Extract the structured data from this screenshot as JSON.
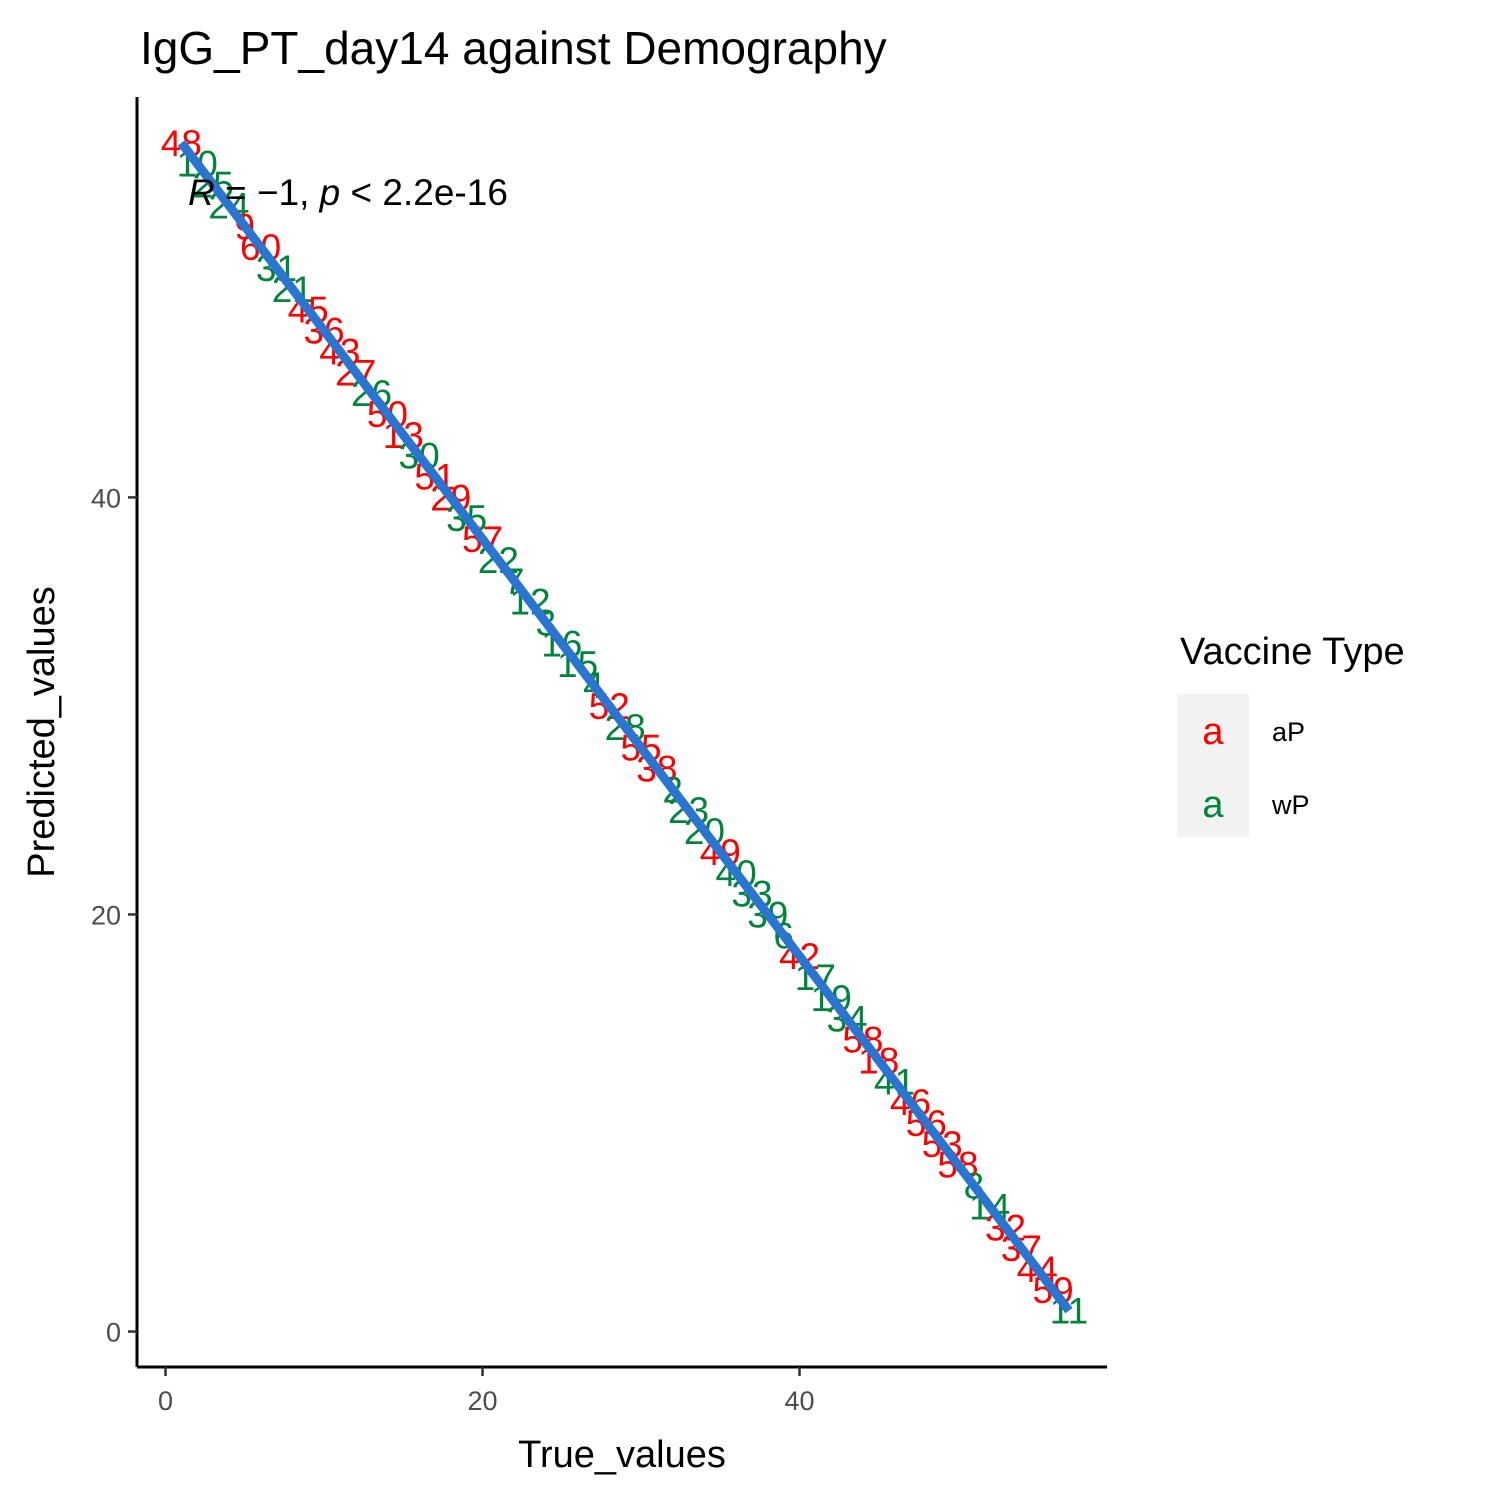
{
  "chart_data": {
    "type": "scatter",
    "title": "IgG_PT_day14 against Demography",
    "xlabel": "True_values",
    "ylabel": "Predicted_values",
    "xlim": [
      -1.8,
      59.4
    ],
    "ylim": [
      -1.7,
      59.2
    ],
    "xticks": [
      0,
      20,
      40
    ],
    "yticks": [
      0,
      20,
      40
    ],
    "grid": false,
    "annotation": "R = −1, p < 2.2e-16",
    "annotation_parts": {
      "r_symbol": "R",
      "r_rest": " = −1, ",
      "p_symbol": "p",
      "p_rest": " < 2.2e-16"
    },
    "legend": {
      "title": "Vaccine Type",
      "position": "right",
      "key_glyph": "a",
      "entries": [
        {
          "name": "aP",
          "color": "#ff0000"
        },
        {
          "name": "wP",
          "color": "#00843c"
        }
      ]
    },
    "regression_line": {
      "color": "#2a74d2",
      "from": [
        1,
        57
      ],
      "to": [
        57,
        1
      ]
    },
    "points": [
      {
        "label": "48",
        "x": 1,
        "y": 57,
        "group": "aP"
      },
      {
        "label": "10",
        "x": 2,
        "y": 56,
        "group": "wP"
      },
      {
        "label": "25",
        "x": 3,
        "y": 55,
        "group": "wP"
      },
      {
        "label": "24",
        "x": 4,
        "y": 54,
        "group": "wP"
      },
      {
        "label": "9",
        "x": 5,
        "y": 53,
        "group": "aP"
      },
      {
        "label": "60",
        "x": 6,
        "y": 52,
        "group": "aP"
      },
      {
        "label": "31",
        "x": 7,
        "y": 51,
        "group": "wP"
      },
      {
        "label": "21",
        "x": 8,
        "y": 50,
        "group": "wP"
      },
      {
        "label": "45",
        "x": 9,
        "y": 49,
        "group": "aP"
      },
      {
        "label": "36",
        "x": 10,
        "y": 48,
        "group": "aP"
      },
      {
        "label": "43",
        "x": 11,
        "y": 47,
        "group": "aP"
      },
      {
        "label": "27",
        "x": 12,
        "y": 46,
        "group": "aP"
      },
      {
        "label": "26",
        "x": 13,
        "y": 45,
        "group": "wP"
      },
      {
        "label": "50",
        "x": 14,
        "y": 44,
        "group": "aP"
      },
      {
        "label": "13",
        "x": 15,
        "y": 43,
        "group": "aP"
      },
      {
        "label": "30",
        "x": 16,
        "y": 42,
        "group": "wP"
      },
      {
        "label": "51",
        "x": 17,
        "y": 41,
        "group": "aP"
      },
      {
        "label": "29",
        "x": 18,
        "y": 40,
        "group": "aP"
      },
      {
        "label": "35",
        "x": 19,
        "y": 39,
        "group": "wP"
      },
      {
        "label": "57",
        "x": 20,
        "y": 38,
        "group": "aP"
      },
      {
        "label": "22",
        "x": 21,
        "y": 37,
        "group": "wP"
      },
      {
        "label": "7",
        "x": 22,
        "y": 36,
        "group": "wP"
      },
      {
        "label": "12",
        "x": 23,
        "y": 35,
        "group": "wP"
      },
      {
        "label": "3",
        "x": 24,
        "y": 34,
        "group": "wP"
      },
      {
        "label": "16",
        "x": 25,
        "y": 33,
        "group": "wP"
      },
      {
        "label": "15",
        "x": 26,
        "y": 32,
        "group": "wP"
      },
      {
        "label": "4",
        "x": 27,
        "y": 31,
        "group": "wP"
      },
      {
        "label": "52",
        "x": 28,
        "y": 30,
        "group": "aP"
      },
      {
        "label": "28",
        "x": 29,
        "y": 29,
        "group": "wP"
      },
      {
        "label": "55",
        "x": 30,
        "y": 28,
        "group": "aP"
      },
      {
        "label": "38",
        "x": 31,
        "y": 27,
        "group": "aP"
      },
      {
        "label": "2",
        "x": 32,
        "y": 26,
        "group": "wP"
      },
      {
        "label": "23",
        "x": 33,
        "y": 25,
        "group": "wP"
      },
      {
        "label": "20",
        "x": 34,
        "y": 24,
        "group": "wP"
      },
      {
        "label": "49",
        "x": 35,
        "y": 23,
        "group": "aP"
      },
      {
        "label": "40",
        "x": 36,
        "y": 22,
        "group": "wP"
      },
      {
        "label": "33",
        "x": 37,
        "y": 21,
        "group": "wP"
      },
      {
        "label": "39",
        "x": 38,
        "y": 20,
        "group": "wP"
      },
      {
        "label": "6",
        "x": 39,
        "y": 19,
        "group": "wP"
      },
      {
        "label": "42",
        "x": 40,
        "y": 18,
        "group": "aP"
      },
      {
        "label": "17",
        "x": 41,
        "y": 17,
        "group": "wP"
      },
      {
        "label": "19",
        "x": 42,
        "y": 16,
        "group": "wP"
      },
      {
        "label": "34",
        "x": 43,
        "y": 15,
        "group": "wP"
      },
      {
        "label": "58",
        "x": 44,
        "y": 14,
        "group": "aP"
      },
      {
        "label": "18",
        "x": 45,
        "y": 13,
        "group": "aP"
      },
      {
        "label": "41",
        "x": 46,
        "y": 12,
        "group": "wP"
      },
      {
        "label": "46",
        "x": 47,
        "y": 11,
        "group": "aP"
      },
      {
        "label": "56",
        "x": 48,
        "y": 10,
        "group": "aP"
      },
      {
        "label": "53",
        "x": 49,
        "y": 9,
        "group": "aP"
      },
      {
        "label": "58",
        "x": 50,
        "y": 8,
        "group": "aP"
      },
      {
        "label": "8",
        "x": 51,
        "y": 7,
        "group": "wP"
      },
      {
        "label": "14",
        "x": 52,
        "y": 6,
        "group": "wP"
      },
      {
        "label": "32",
        "x": 53,
        "y": 5,
        "group": "aP"
      },
      {
        "label": "37",
        "x": 54,
        "y": 4,
        "group": "aP"
      },
      {
        "label": "44",
        "x": 55,
        "y": 3,
        "group": "aP"
      },
      {
        "label": "59",
        "x": 56,
        "y": 2,
        "group": "aP"
      },
      {
        "label": "11",
        "x": 57,
        "y": 1,
        "group": "wP"
      }
    ]
  }
}
